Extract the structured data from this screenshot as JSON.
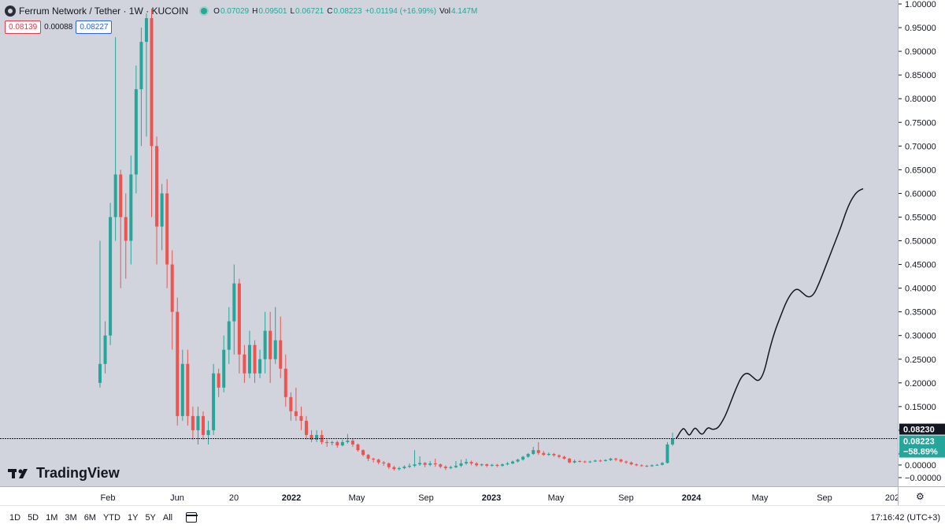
{
  "header": {
    "symbol_title": "Ferrum Network / Tether · 1W · KUCOIN",
    "logo_icon": "ferrum-logo-icon",
    "open_label": "O",
    "open": "0.07029",
    "high_label": "H",
    "high": "0.09501",
    "low_label": "L",
    "low": "0.06721",
    "close_label": "C",
    "close": "0.08223",
    "change": "+0.01194 (+16.99%)",
    "vol_label": "Vol",
    "volume": "4.147M"
  },
  "trade": {
    "sell_price": "0.08139",
    "spread": "0.00088",
    "buy_price": "0.08227"
  },
  "watermark": "TradingView",
  "price_labels": {
    "crosshair": "0.08230",
    "last_price": "0.08223",
    "last_change": "−58.89%"
  },
  "time_axis_labels": [
    "Feb",
    "Jun",
    "20",
    "2022",
    "May",
    "Sep",
    "2023",
    "May",
    "Sep",
    "2024",
    "May",
    "Sep",
    "202"
  ],
  "timeframes": [
    "1D",
    "5D",
    "1M",
    "3M",
    "6M",
    "YTD",
    "1Y",
    "5Y",
    "All"
  ],
  "clock": "17:16:42 (UTC+3)",
  "colors": {
    "up": "#26a69a",
    "down": "#ef5350",
    "projection": "#131722",
    "chart_bg": "#d1d4dc"
  },
  "chart_data": {
    "type": "candlestick",
    "y_ticks": [
      "1.00000",
      "0.95000",
      "0.90000",
      "0.85000",
      "0.80000",
      "0.75000",
      "0.70000",
      "0.65000",
      "0.60000",
      "0.55000",
      "0.50000",
      "0.45000",
      "0.40000",
      "0.35000",
      "0.30000",
      "0.25000",
      "0.20000",
      "0.15000",
      "0.10000",
      "0.05000",
      "0.00000",
      "−0.00000"
    ],
    "ylim": [
      -0.005,
      1.005
    ],
    "x_ticks": [
      "Feb",
      "Jun",
      "20",
      "2022",
      "May",
      "Sep",
      "2023",
      "May",
      "Sep",
      "2024",
      "May",
      "Sep",
      "202"
    ],
    "horizontal_line": 0.0823,
    "last_close": 0.08223,
    "candles": [
      [
        0.2,
        0.24,
        0.5,
        0.19
      ],
      [
        0.24,
        0.3,
        0.33,
        0.22
      ],
      [
        0.3,
        0.55,
        0.58,
        0.28
      ],
      [
        0.55,
        0.64,
        0.93,
        0.5
      ],
      [
        0.64,
        0.55,
        0.65,
        0.4
      ],
      [
        0.55,
        0.5,
        0.6,
        0.42
      ],
      [
        0.5,
        0.64,
        0.68,
        0.45
      ],
      [
        0.64,
        0.82,
        0.87,
        0.6
      ],
      [
        0.82,
        0.92,
        0.95,
        0.7
      ],
      [
        0.92,
        0.97,
        0.98,
        0.72
      ],
      [
        0.97,
        0.7,
        0.99,
        0.55
      ],
      [
        0.7,
        0.53,
        0.72,
        0.45
      ],
      [
        0.53,
        0.6,
        0.62,
        0.48
      ],
      [
        0.6,
        0.45,
        0.63,
        0.4
      ],
      [
        0.45,
        0.35,
        0.48,
        0.27
      ],
      [
        0.35,
        0.13,
        0.38,
        0.11
      ],
      [
        0.13,
        0.24,
        0.27,
        0.12
      ],
      [
        0.24,
        0.13,
        0.27,
        0.11
      ],
      [
        0.13,
        0.1,
        0.15,
        0.08
      ],
      [
        0.1,
        0.13,
        0.15,
        0.07
      ],
      [
        0.13,
        0.09,
        0.14,
        0.08
      ],
      [
        0.09,
        0.1,
        0.12,
        0.07
      ],
      [
        0.1,
        0.22,
        0.24,
        0.09
      ],
      [
        0.22,
        0.19,
        0.23,
        0.17
      ],
      [
        0.19,
        0.27,
        0.3,
        0.18
      ],
      [
        0.27,
        0.33,
        0.36,
        0.24
      ],
      [
        0.33,
        0.41,
        0.45,
        0.26
      ],
      [
        0.41,
        0.26,
        0.42,
        0.22
      ],
      [
        0.26,
        0.22,
        0.28,
        0.2
      ],
      [
        0.22,
        0.28,
        0.31,
        0.21
      ],
      [
        0.28,
        0.22,
        0.29,
        0.2
      ],
      [
        0.22,
        0.25,
        0.27,
        0.21
      ],
      [
        0.25,
        0.31,
        0.35,
        0.22
      ],
      [
        0.31,
        0.25,
        0.35,
        0.2
      ],
      [
        0.25,
        0.29,
        0.36,
        0.24
      ],
      [
        0.29,
        0.23,
        0.34,
        0.21
      ],
      [
        0.23,
        0.17,
        0.26,
        0.15
      ],
      [
        0.17,
        0.14,
        0.18,
        0.12
      ],
      [
        0.14,
        0.13,
        0.19,
        0.12
      ],
      [
        0.13,
        0.12,
        0.15,
        0.1
      ],
      [
        0.12,
        0.09,
        0.13,
        0.08
      ],
      [
        0.09,
        0.08,
        0.1,
        0.075
      ],
      [
        0.08,
        0.09,
        0.1,
        0.075
      ],
      [
        0.09,
        0.075,
        0.1,
        0.07
      ],
      [
        0.075,
        0.073,
        0.08,
        0.065
      ],
      [
        0.073,
        0.075,
        0.078,
        0.068
      ],
      [
        0.075,
        0.068,
        0.078,
        0.063
      ],
      [
        0.068,
        0.075,
        0.08,
        0.066
      ],
      [
        0.075,
        0.078,
        0.092,
        0.072
      ],
      [
        0.078,
        0.07,
        0.082,
        0.065
      ],
      [
        0.07,
        0.058,
        0.072,
        0.055
      ],
      [
        0.058,
        0.048,
        0.06,
        0.045
      ],
      [
        0.048,
        0.04,
        0.05,
        0.035
      ],
      [
        0.04,
        0.038,
        0.042,
        0.032
      ],
      [
        0.038,
        0.032,
        0.04,
        0.028
      ],
      [
        0.032,
        0.03,
        0.035,
        0.025
      ],
      [
        0.03,
        0.022,
        0.032,
        0.018
      ],
      [
        0.022,
        0.018,
        0.025,
        0.015
      ],
      [
        0.018,
        0.02,
        0.023,
        0.015
      ],
      [
        0.02,
        0.023,
        0.026,
        0.018
      ],
      [
        0.023,
        0.025,
        0.03,
        0.02
      ],
      [
        0.025,
        0.028,
        0.058,
        0.022
      ],
      [
        0.028,
        0.031,
        0.045,
        0.025
      ],
      [
        0.031,
        0.027,
        0.033,
        0.022
      ],
      [
        0.027,
        0.03,
        0.035,
        0.024
      ],
      [
        0.03,
        0.028,
        0.04,
        0.023
      ],
      [
        0.028,
        0.023,
        0.03,
        0.02
      ],
      [
        0.023,
        0.02,
        0.026,
        0.016
      ],
      [
        0.02,
        0.022,
        0.025,
        0.018
      ],
      [
        0.022,
        0.025,
        0.035,
        0.02
      ],
      [
        0.025,
        0.03,
        0.038,
        0.022
      ],
      [
        0.03,
        0.033,
        0.04,
        0.027
      ],
      [
        0.033,
        0.03,
        0.036,
        0.026
      ],
      [
        0.03,
        0.026,
        0.033,
        0.023
      ],
      [
        0.026,
        0.028,
        0.03,
        0.024
      ],
      [
        0.028,
        0.025,
        0.03,
        0.022
      ],
      [
        0.025,
        0.027,
        0.029,
        0.023
      ],
      [
        0.027,
        0.025,
        0.029,
        0.022
      ],
      [
        0.025,
        0.028,
        0.03,
        0.023
      ],
      [
        0.028,
        0.03,
        0.033,
        0.026
      ],
      [
        0.03,
        0.034,
        0.036,
        0.028
      ],
      [
        0.034,
        0.038,
        0.04,
        0.032
      ],
      [
        0.038,
        0.044,
        0.046,
        0.036
      ],
      [
        0.044,
        0.05,
        0.052,
        0.042
      ],
      [
        0.05,
        0.058,
        0.065,
        0.048
      ],
      [
        0.058,
        0.052,
        0.075,
        0.048
      ],
      [
        0.052,
        0.048,
        0.056,
        0.046
      ],
      [
        0.048,
        0.05,
        0.053,
        0.046
      ],
      [
        0.05,
        0.047,
        0.052,
        0.044
      ],
      [
        0.047,
        0.044,
        0.049,
        0.041
      ],
      [
        0.044,
        0.04,
        0.046,
        0.038
      ],
      [
        0.04,
        0.032,
        0.042,
        0.03
      ],
      [
        0.032,
        0.035,
        0.038,
        0.03
      ],
      [
        0.035,
        0.034,
        0.037,
        0.032
      ],
      [
        0.034,
        0.033,
        0.036,
        0.031
      ],
      [
        0.033,
        0.034,
        0.036,
        0.031
      ],
      [
        0.034,
        0.036,
        0.038,
        0.033
      ],
      [
        0.036,
        0.035,
        0.038,
        0.033
      ],
      [
        0.035,
        0.037,
        0.039,
        0.034
      ],
      [
        0.037,
        0.04,
        0.042,
        0.035
      ],
      [
        0.04,
        0.038,
        0.042,
        0.035
      ],
      [
        0.038,
        0.034,
        0.04,
        0.032
      ],
      [
        0.034,
        0.032,
        0.036,
        0.029
      ],
      [
        0.032,
        0.028,
        0.034,
        0.026
      ],
      [
        0.028,
        0.026,
        0.03,
        0.024
      ],
      [
        0.026,
        0.025,
        0.028,
        0.023
      ],
      [
        0.025,
        0.024,
        0.027,
        0.022
      ],
      [
        0.024,
        0.026,
        0.028,
        0.023
      ],
      [
        0.026,
        0.027,
        0.029,
        0.025
      ],
      [
        0.027,
        0.031,
        0.033,
        0.026
      ],
      [
        0.031,
        0.07,
        0.075,
        0.03
      ],
      [
        0.07,
        0.08223,
        0.09501,
        0.067
      ]
    ],
    "projection": [
      [
        0.0823,
        0.0823
      ],
      [
        0.5,
        0.09
      ],
      [
        1,
        0.1
      ],
      [
        1.5,
        0.105
      ],
      [
        2,
        0.095
      ],
      [
        2.5,
        0.088
      ],
      [
        3,
        0.098
      ],
      [
        3.5,
        0.106
      ],
      [
        4,
        0.1
      ],
      [
        4.5,
        0.092
      ],
      [
        5,
        0.092
      ],
      [
        5.5,
        0.102
      ],
      [
        6,
        0.106
      ],
      [
        6.5,
        0.102
      ],
      [
        7,
        0.102
      ],
      [
        7.5,
        0.104
      ],
      [
        8,
        0.11
      ],
      [
        9,
        0.13
      ],
      [
        10,
        0.16
      ],
      [
        11,
        0.19
      ],
      [
        12,
        0.215
      ],
      [
        13,
        0.222
      ],
      [
        14,
        0.212
      ],
      [
        15,
        0.202
      ],
      [
        16,
        0.22
      ],
      [
        17,
        0.27
      ],
      [
        18,
        0.31
      ],
      [
        19,
        0.34
      ],
      [
        20,
        0.37
      ],
      [
        21,
        0.39
      ],
      [
        22,
        0.4
      ],
      [
        23,
        0.39
      ],
      [
        24,
        0.38
      ],
      [
        25,
        0.385
      ],
      [
        26,
        0.41
      ],
      [
        27,
        0.44
      ],
      [
        28,
        0.47
      ],
      [
        29,
        0.5
      ],
      [
        30,
        0.53
      ],
      [
        31,
        0.565
      ],
      [
        32,
        0.59
      ],
      [
        33,
        0.605
      ],
      [
        34,
        0.61
      ]
    ]
  }
}
